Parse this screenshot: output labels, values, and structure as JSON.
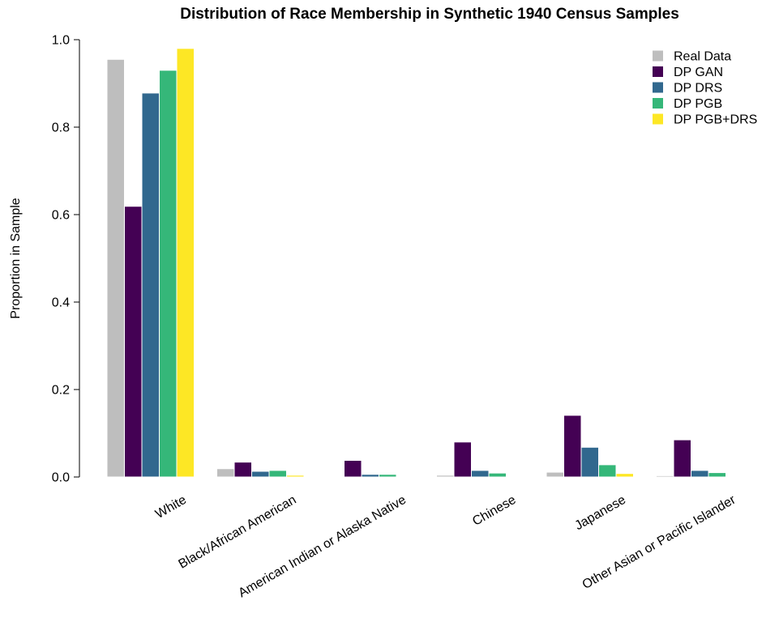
{
  "chart_data": {
    "type": "bar",
    "title": "Distribution of Race Membership in Synthetic 1940 Census Samples",
    "xlabel": "",
    "ylabel": "Proportion in Sample",
    "ylim": [
      0,
      1.0
    ],
    "yticks": [
      "0.0",
      "0.2",
      "0.4",
      "0.6",
      "0.8",
      "1.0"
    ],
    "grid": false,
    "legend_position": "top-right",
    "categories": [
      "White",
      "Black/African American",
      "American Indian or Alaska Native",
      "Chinese",
      "Japanese",
      "Other Asian or Pacific Islander"
    ],
    "series": [
      {
        "name": "Real Data",
        "color": "#bebebe",
        "values": [
          0.955,
          0.019,
          0.001,
          0.004,
          0.011,
          0.003
        ]
      },
      {
        "name": "DP GAN",
        "color": "#440154",
        "values": [
          0.619,
          0.034,
          0.038,
          0.08,
          0.141,
          0.085
        ]
      },
      {
        "name": "DP DRS",
        "color": "#31688e",
        "values": [
          0.878,
          0.013,
          0.006,
          0.015,
          0.068,
          0.015
        ]
      },
      {
        "name": "DP PGB",
        "color": "#35b779",
        "values": [
          0.93,
          0.015,
          0.006,
          0.009,
          0.028,
          0.01
        ]
      },
      {
        "name": "DP PGB+DRS",
        "color": "#fde725",
        "values": [
          0.98,
          0.004,
          0.001,
          0.001,
          0.008,
          0.001
        ]
      }
    ]
  }
}
